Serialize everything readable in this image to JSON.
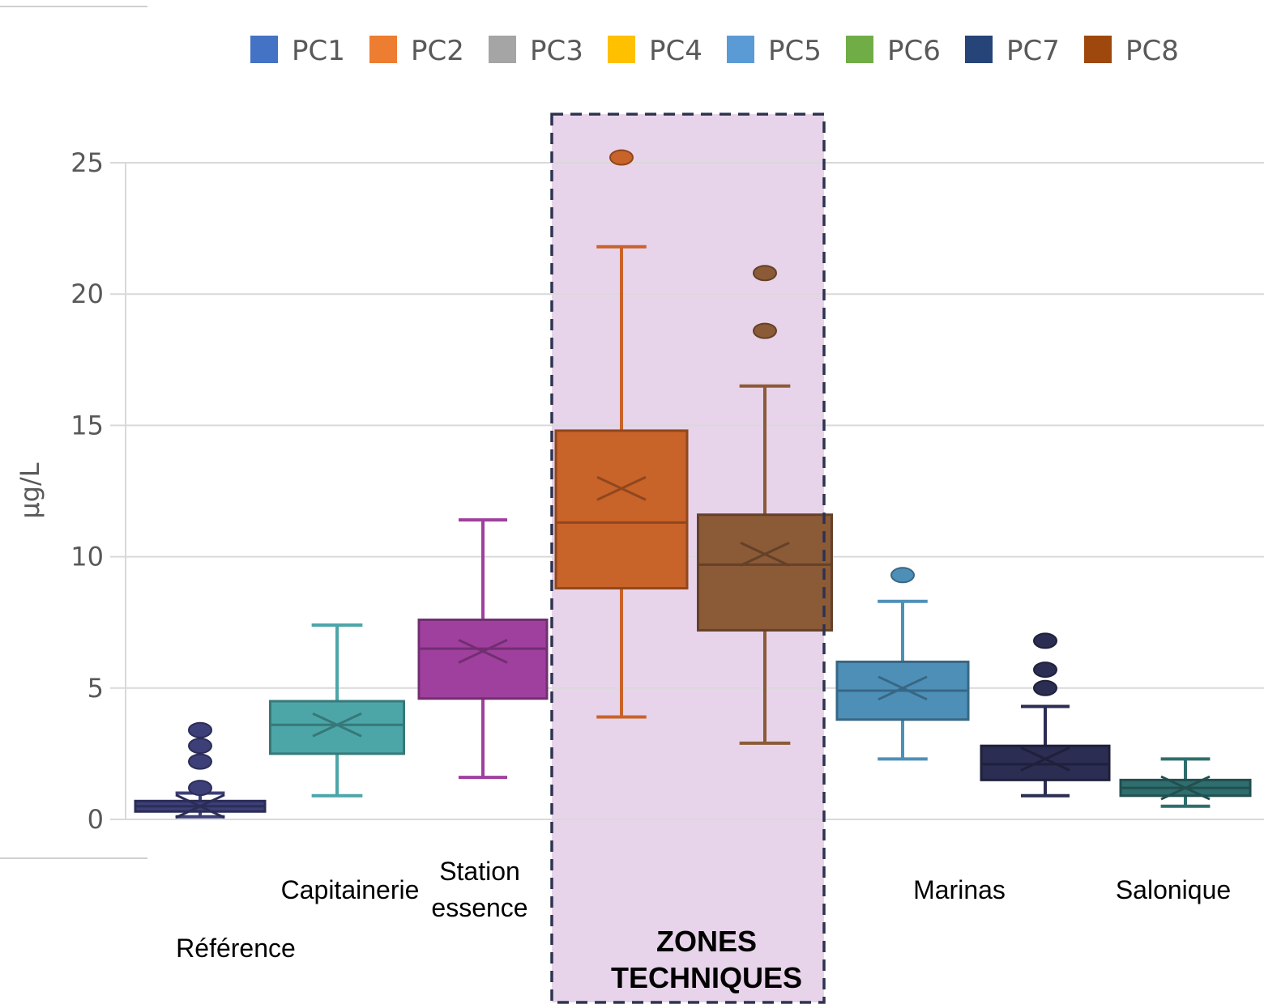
{
  "chart_data": {
    "type": "box",
    "ylabel": "µg/L",
    "ylim": [
      0,
      25
    ],
    "yticks": [
      0,
      5,
      10,
      15,
      20,
      25
    ],
    "grid": true,
    "legend_position": "top",
    "legend": [
      {
        "name": "PC1",
        "color": "#4472c4"
      },
      {
        "name": "PC2",
        "color": "#ed7d31"
      },
      {
        "name": "PC3",
        "color": "#a5a5a5"
      },
      {
        "name": "PC4",
        "color": "#ffc000"
      },
      {
        "name": "PC5",
        "color": "#5b9bd5"
      },
      {
        "name": "PC6",
        "color": "#70ad47"
      },
      {
        "name": "PC7",
        "color": "#264478"
      },
      {
        "name": "PC8",
        "color": "#9e480e"
      }
    ],
    "series": [
      {
        "label": "Référence",
        "color": "#3d3f78",
        "min": 0.1,
        "q1": 0.3,
        "median": 0.5,
        "q3": 0.7,
        "max": 1.0,
        "mean": 0.5,
        "outliers": [
          1.2,
          2.2,
          2.8,
          3.4
        ]
      },
      {
        "label": "Capitainerie",
        "color": "#4ca6a8",
        "min": 0.9,
        "q1": 2.5,
        "median": 3.6,
        "q3": 4.5,
        "max": 7.4,
        "mean": 3.6,
        "outliers": []
      },
      {
        "label": "Station essence",
        "color": "#a0409e",
        "min": 1.6,
        "q1": 4.6,
        "median": 6.5,
        "q3": 7.6,
        "max": 11.4,
        "mean": 6.4,
        "outliers": []
      },
      {
        "label": "",
        "color": "#c8632a",
        "min": 3.9,
        "q1": 8.8,
        "median": 11.3,
        "q3": 14.8,
        "max": 21.8,
        "mean": 12.6,
        "outliers": [
          25.2
        ]
      },
      {
        "label": "",
        "color": "#8b5a37",
        "min": 2.9,
        "q1": 7.2,
        "median": 9.7,
        "q3": 11.6,
        "max": 16.5,
        "mean": 10.1,
        "outliers": [
          18.6,
          20.8
        ]
      },
      {
        "label": "Marinas",
        "color": "#4e8fb8",
        "min": 2.3,
        "q1": 3.8,
        "median": 4.9,
        "q3": 6.0,
        "max": 8.3,
        "mean": 5.0,
        "outliers": [
          9.3
        ]
      },
      {
        "label": "",
        "color": "#2b2d52",
        "min": 0.9,
        "q1": 1.5,
        "median": 2.1,
        "q3": 2.8,
        "max": 4.3,
        "mean": 2.3,
        "outliers": [
          5.0,
          5.7,
          6.8
        ]
      },
      {
        "label": "Salonique",
        "color": "#2f6e6e",
        "min": 0.5,
        "q1": 0.9,
        "median": 1.2,
        "q3": 1.5,
        "max": 2.3,
        "mean": 1.2,
        "outliers": []
      }
    ],
    "annotations": [
      {
        "text_lines": [
          "ZONES",
          "TECHNIQUES"
        ],
        "color": "#e8d4ea",
        "covers": [
          3,
          4
        ]
      }
    ]
  }
}
